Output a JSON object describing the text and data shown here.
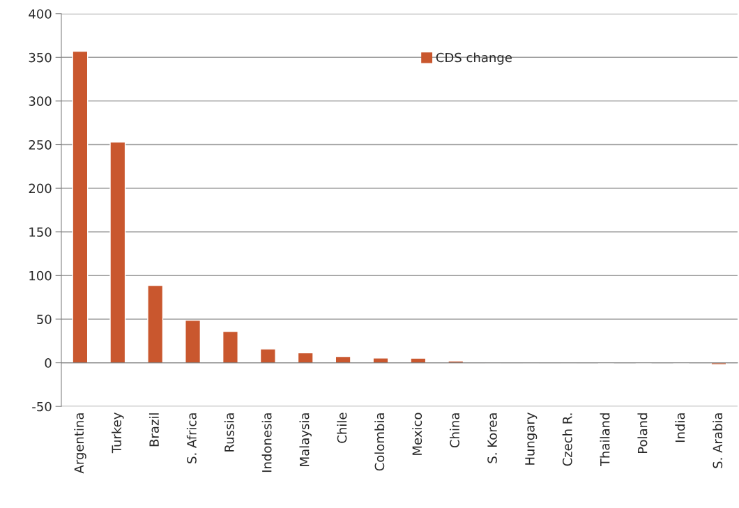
{
  "chart_data": {
    "type": "bar",
    "categories": [
      "Argentina",
      "Turkey",
      "Brazil",
      "S. Africa",
      "Russia",
      "Indonesia",
      "Malaysia",
      "Chile",
      "Colombia",
      "Mexico",
      "China",
      "S. Korea",
      "Hungary",
      "Czech R.",
      "Thailand",
      "Poland",
      "India",
      "S. Arabia"
    ],
    "series": [
      {
        "name": "CDS change",
        "color": "#c9572e",
        "values": [
          357,
          253,
          88.6,
          48.7,
          36,
          15.7,
          11.5,
          7.3,
          5.5,
          5.2,
          2,
          1,
          0.2,
          0.2,
          -0.5,
          -0.5,
          -0.5,
          -2
        ]
      }
    ],
    "ylim": [
      -50,
      400
    ],
    "yticks": [
      -50,
      0,
      50,
      100,
      150,
      200,
      250,
      300,
      350,
      400
    ],
    "grid": "y",
    "legend": "top"
  }
}
